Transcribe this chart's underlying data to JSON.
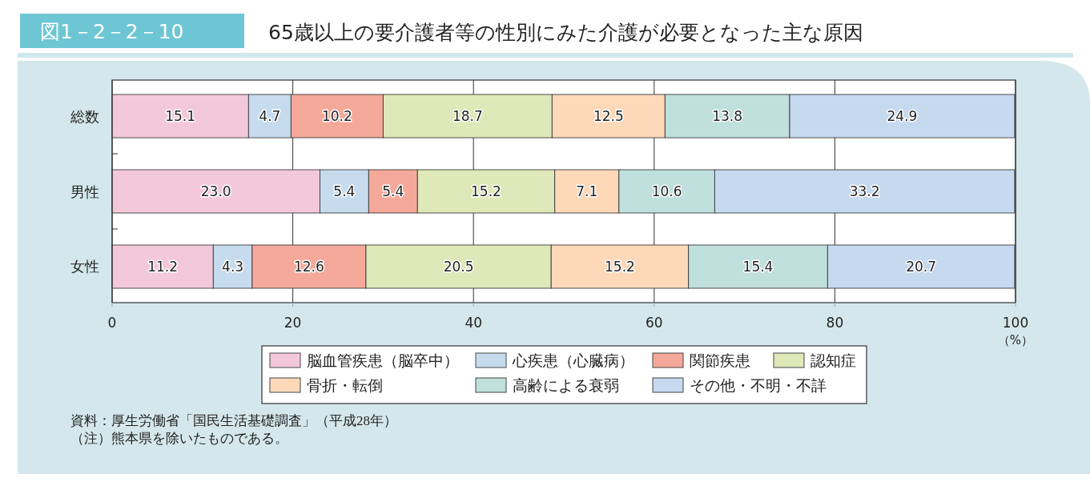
{
  "chart_data": {
    "type": "bar",
    "orientation": "horizontal",
    "stacked": true,
    "title": "65歳以上の要介護者等の性別にみた介護が必要となった主な原因",
    "subtitle": "図1－2－2－10",
    "xlabel": "（%）",
    "categories": [
      "総数",
      "男性",
      "女性"
    ],
    "series": [
      {
        "name": "脳血管疾患（脳卒中）",
        "color": "#f3c9da",
        "values": [
          15.1,
          23.0,
          11.2
        ],
        "value_labels": [
          "15.1",
          "23.0",
          "11.2"
        ]
      },
      {
        "name": "心疾患（心臓病）",
        "color": "#c6dcee",
        "values": [
          4.7,
          5.4,
          4.3
        ],
        "value_labels": [
          "4.7",
          "5.4",
          "4.3"
        ]
      },
      {
        "name": "関節疾患",
        "color": "#f5a99a",
        "values": [
          10.2,
          5.4,
          12.6
        ],
        "value_labels": [
          "10.2",
          "5.4",
          "12.6"
        ]
      },
      {
        "name": "認知症",
        "color": "#dfe8b8",
        "values": [
          18.7,
          15.2,
          20.5
        ],
        "value_labels": [
          "18.7",
          "15.2",
          "20.5"
        ]
      },
      {
        "name": "骨折・転倒",
        "color": "#fdd8b9",
        "values": [
          12.5,
          7.1,
          15.2
        ],
        "value_labels": [
          "12.5",
          "7.1",
          "15.2"
        ]
      },
      {
        "name": "高齢による衰弱",
        "color": "#bfe0dc",
        "values": [
          13.8,
          10.6,
          15.4
        ],
        "value_labels": [
          "13.8",
          "10.6",
          "15.4"
        ]
      },
      {
        "name": "その他・不明・不詳",
        "color": "#c5d9ef",
        "values": [
          24.9,
          33.2,
          20.7
        ],
        "value_labels": [
          "24.9",
          "33.2",
          "20.7"
        ]
      }
    ],
    "xlim": [
      0,
      100
    ],
    "xticks": [
      0,
      20,
      40,
      60,
      80,
      100
    ],
    "grid": "x",
    "legend": "bottom",
    "annotations": [
      "資料：厚生労働省「国民生活基礎調査」（平成28年）",
      "（注）熊本県を除いたものである。"
    ]
  }
}
